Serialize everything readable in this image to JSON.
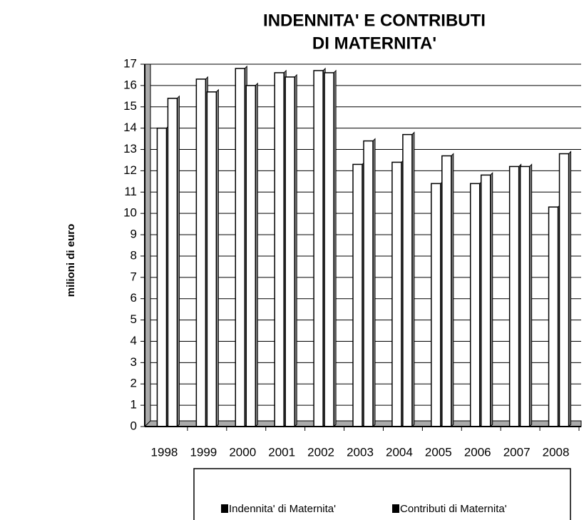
{
  "chart_data": {
    "type": "bar",
    "title": "INDENNITA' E CONTRIBUTI",
    "subtitle": "DI MATERNITA'",
    "y_label": "milioni di euro",
    "categories": [
      "1998",
      "1999",
      "2000",
      "2001",
      "2002",
      "2003",
      "2004",
      "2005",
      "2006",
      "2007",
      "2008"
    ],
    "series": [
      {
        "name": "Indennita' di Maternita'",
        "color": "#ffffff",
        "values": [
          14.0,
          16.3,
          16.8,
          16.6,
          16.7,
          12.3,
          12.4,
          11.4,
          11.4,
          12.2,
          10.3
        ]
      },
      {
        "name": "Contributi di Maternita'",
        "color": "#ffffff",
        "values": [
          15.4,
          15.7,
          16.0,
          16.4,
          16.6,
          13.4,
          13.7,
          12.7,
          11.8,
          12.2,
          12.8
        ]
      }
    ],
    "ylim": [
      0,
      17
    ],
    "yticks": [
      0,
      1,
      2,
      3,
      4,
      5,
      6,
      7,
      8,
      9,
      10,
      11,
      12,
      13,
      14,
      15,
      16,
      17
    ],
    "grid": true,
    "legend": "bottom"
  }
}
